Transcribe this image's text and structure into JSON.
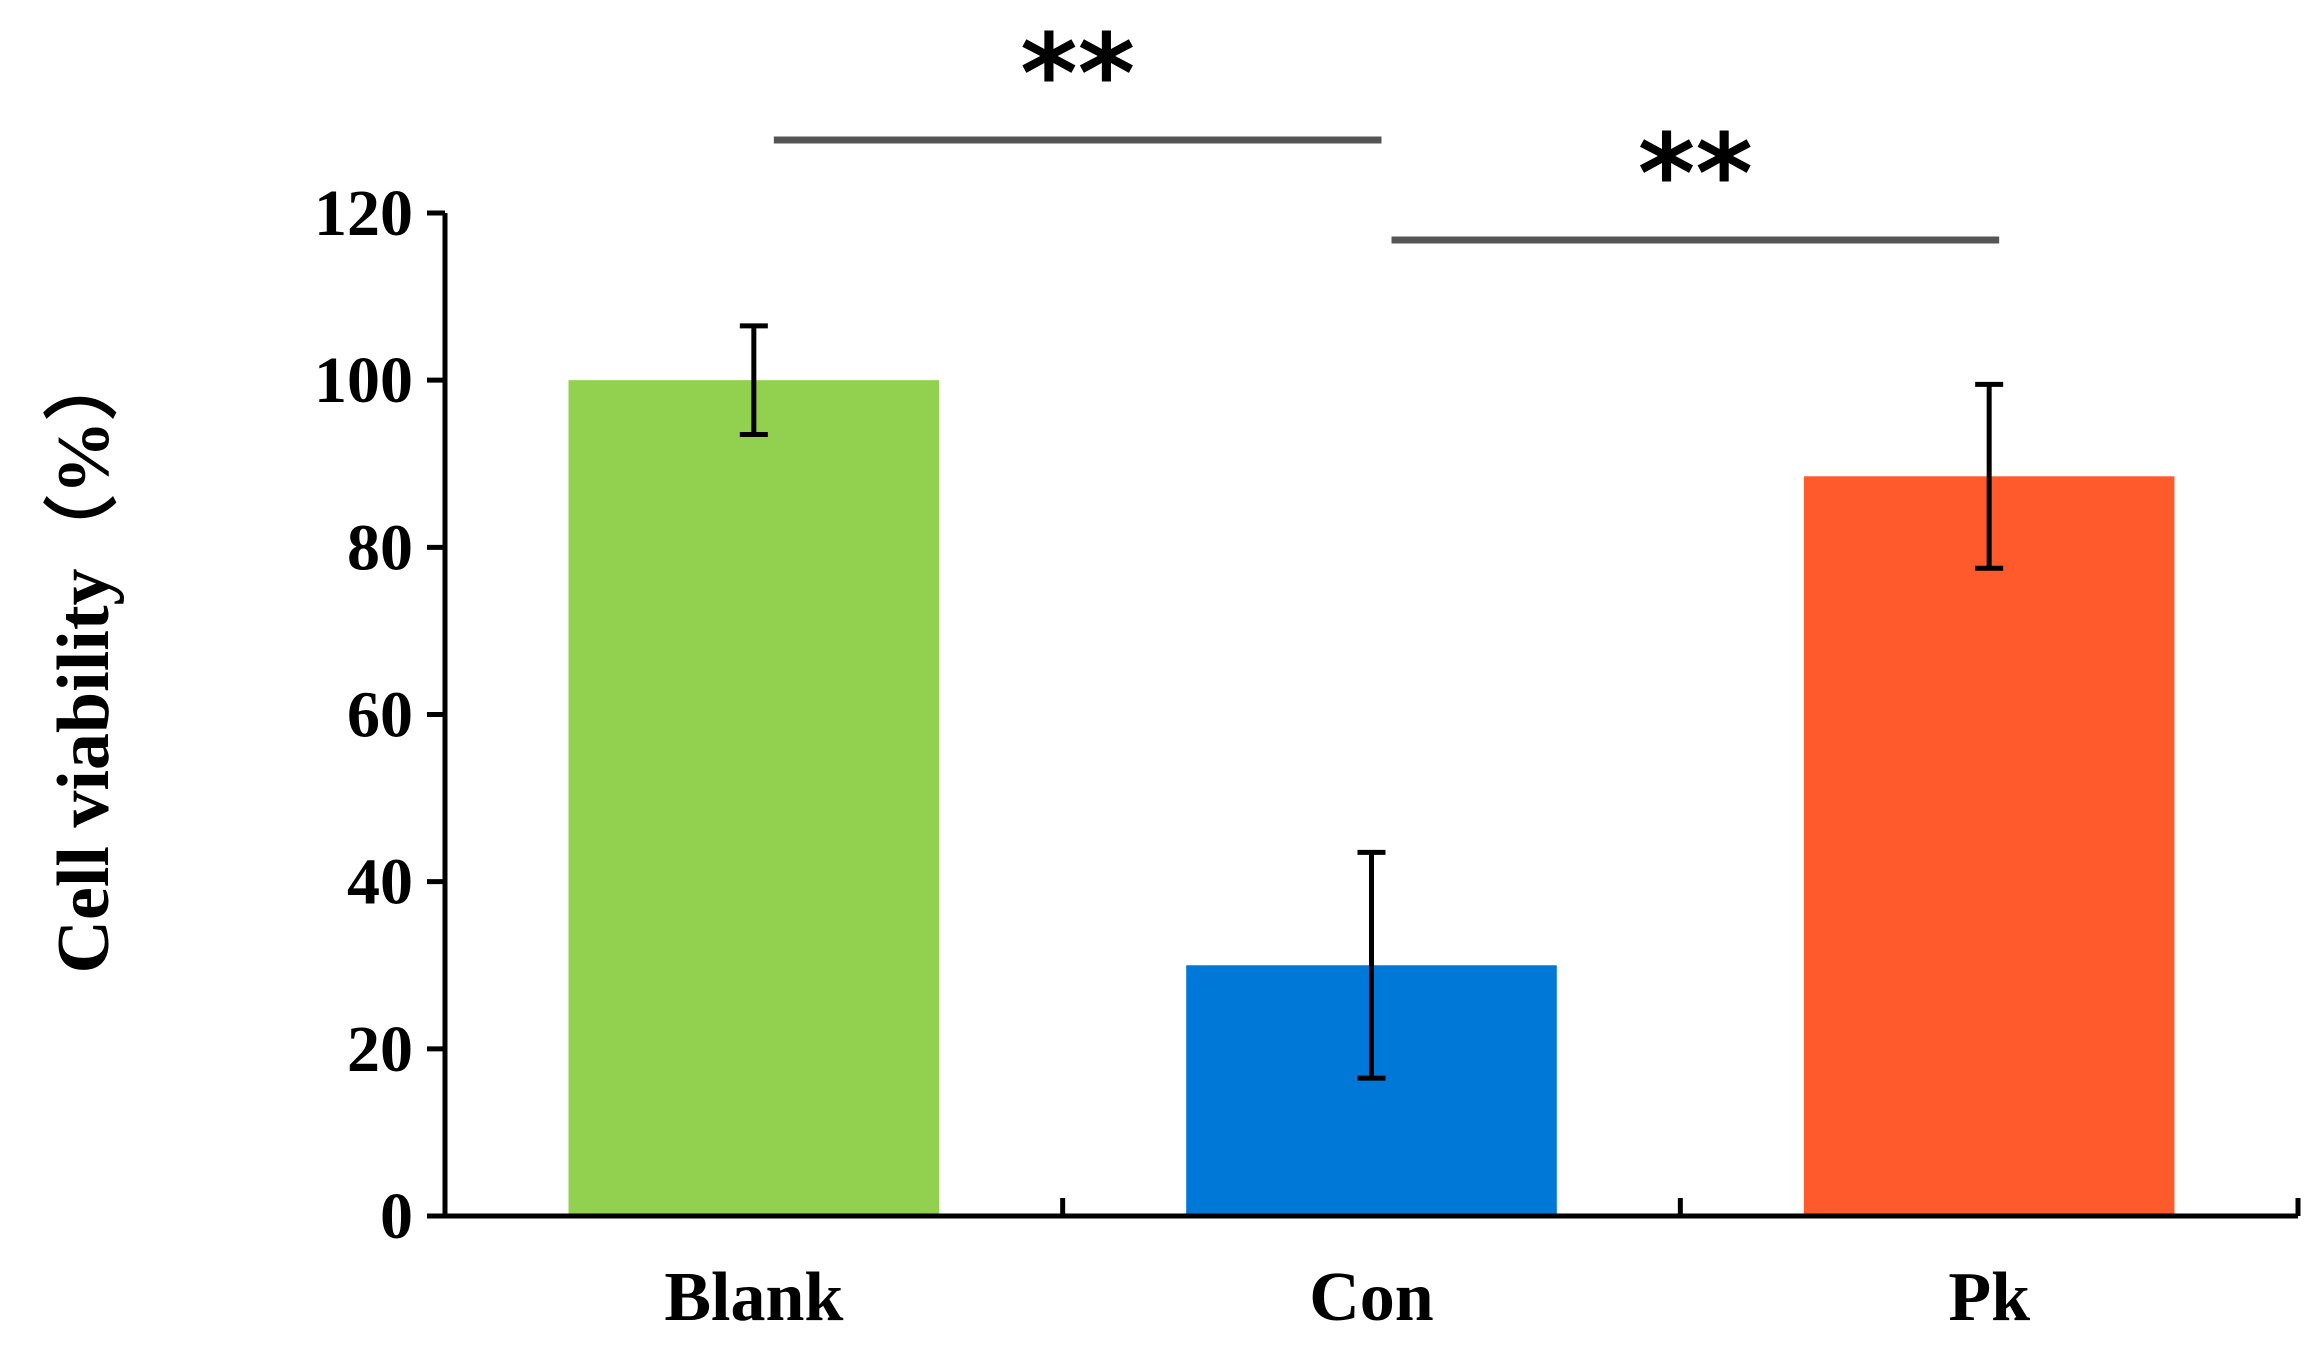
{
  "chart_data": {
    "type": "bar",
    "title": "",
    "xlabel": "",
    "ylabel": "Cell viability（%）",
    "ylim": [
      0,
      120
    ],
    "yticks": [
      "0",
      "20",
      "40",
      "60",
      "80",
      "100",
      "120"
    ],
    "categories": [
      "Blank",
      "Con",
      "Pk"
    ],
    "values": [
      100,
      30,
      88.5
    ],
    "error_low": [
      93.5,
      16.5,
      77.5
    ],
    "error_high": [
      106.5,
      43.5,
      99.5
    ],
    "bar_colors": [
      "#92d050",
      "#0078d7",
      "#ff5a2b"
    ],
    "grid": false,
    "legend": "none",
    "significance": [
      {
        "from": "Blank",
        "to": "Con",
        "label": "**",
        "level": 1
      },
      {
        "from": "Con",
        "to": "Pk",
        "label": "**",
        "level": 0
      }
    ],
    "colors": {
      "axis": "#000000",
      "bracket": "#555555",
      "error_bar": "#000000"
    }
  }
}
